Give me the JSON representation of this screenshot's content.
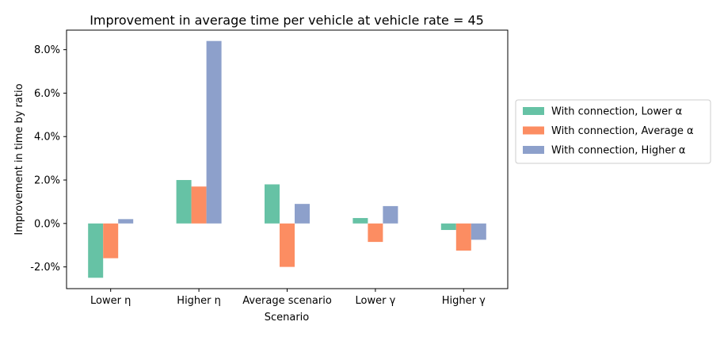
{
  "chart_data": {
    "type": "bar",
    "title": "Improvement in average time per vehicle at vehicle rate = 45",
    "xlabel": "Scenario",
    "ylabel": "Improvement in time by ratio",
    "categories": [
      "Lower η",
      "Higher η",
      "Average scenario",
      "Lower γ",
      "Higher γ"
    ],
    "ylim": [
      -3.0,
      8.9
    ],
    "yticks": [
      -2.0,
      0.0,
      2.0,
      4.0,
      6.0,
      8.0
    ],
    "ytick_labels": [
      "-2.0%",
      "0.0%",
      "2.0%",
      "4.0%",
      "6.0%",
      "8.0%"
    ],
    "grid": false,
    "legend_position": "right",
    "series": [
      {
        "name": "With connection, Lower α",
        "color": "#66c2a5",
        "values": [
          -2.5,
          2.0,
          1.8,
          0.25,
          -0.3
        ]
      },
      {
        "name": "With connection, Average α",
        "color": "#fc8d62",
        "values": [
          -1.6,
          1.7,
          -2.0,
          -0.85,
          -1.25
        ]
      },
      {
        "name": "With connection, Higher α",
        "color": "#8da0cb",
        "values": [
          0.2,
          8.4,
          0.9,
          0.8,
          -0.75
        ]
      }
    ]
  }
}
